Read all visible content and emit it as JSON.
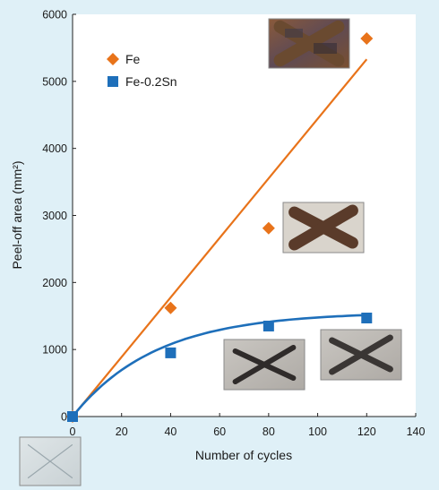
{
  "chart_data": {
    "type": "scatter",
    "xlabel": "Number of cycles",
    "ylabel": "Peel-off area (mm²)",
    "xlim": [
      0,
      140
    ],
    "ylim": [
      0,
      6000
    ],
    "x_ticks": [
      0,
      20,
      40,
      60,
      80,
      100,
      120,
      140
    ],
    "y_ticks": [
      0,
      1000,
      2000,
      3000,
      4000,
      5000,
      6000
    ],
    "grid": false,
    "legend_position": "top-left",
    "series": [
      {
        "name": "Fe",
        "marker": "diamond",
        "color": "#e8731a",
        "x": [
          0,
          40,
          80,
          120
        ],
        "y": [
          0,
          1620,
          2810,
          5640
        ],
        "trend": "linear",
        "trend_end": [
          120,
          5330
        ]
      },
      {
        "name": "Fe-0.2Sn",
        "marker": "square",
        "color": "#1e6fba",
        "x": [
          0,
          40,
          80,
          120
        ],
        "y": [
          0,
          950,
          1350,
          1470
        ],
        "trend": "saturating"
      }
    ],
    "inset_photos": [
      {
        "depicts": "Fe",
        "cycles": 120,
        "cross_color": "#6a4a30"
      },
      {
        "depicts": "Fe",
        "cycles": 80,
        "cross_color": "#5a3b2a"
      },
      {
        "depicts": "Fe-0.2Sn",
        "cycles": 80,
        "cross_color": "#2f2b2a"
      },
      {
        "depicts": "Fe-0.2Sn",
        "cycles": 120,
        "cross_color": "#3a3634"
      },
      {
        "depicts": "initial",
        "cycles": 0,
        "cross_color": "#9aa7ad"
      }
    ]
  }
}
